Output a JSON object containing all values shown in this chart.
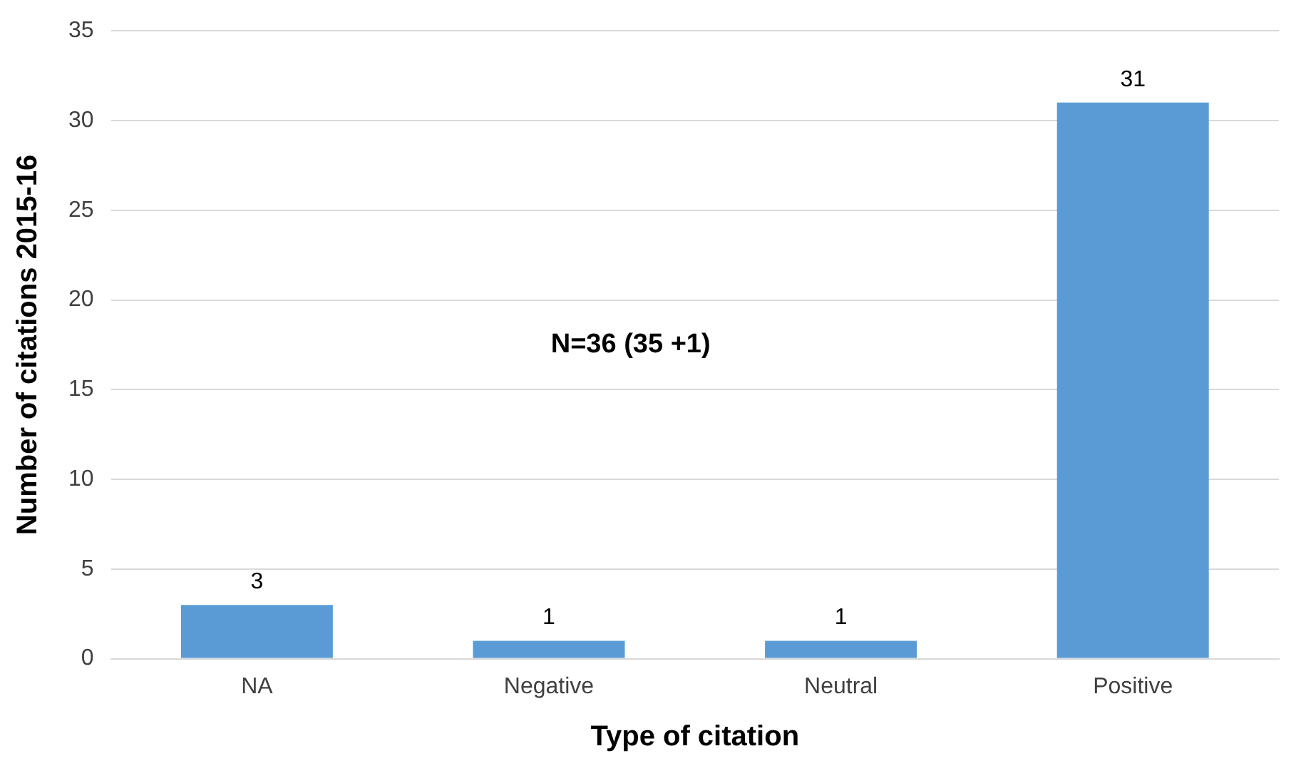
{
  "chart_data": {
    "type": "bar",
    "xlabel": "Type of citation",
    "ylabel": "Number of citations 2015-16",
    "categories": [
      "NA",
      "Negative",
      "Neutral",
      "Positive"
    ],
    "values": [
      3,
      1,
      1,
      31
    ],
    "color": "#5b9bd5",
    "ylim": [
      0,
      35
    ],
    "yticks": [
      0,
      5,
      10,
      15,
      20,
      25,
      30,
      35
    ],
    "grid": "y",
    "data_labels": true,
    "annotations": [
      "N=36 (35 +1)"
    ]
  }
}
